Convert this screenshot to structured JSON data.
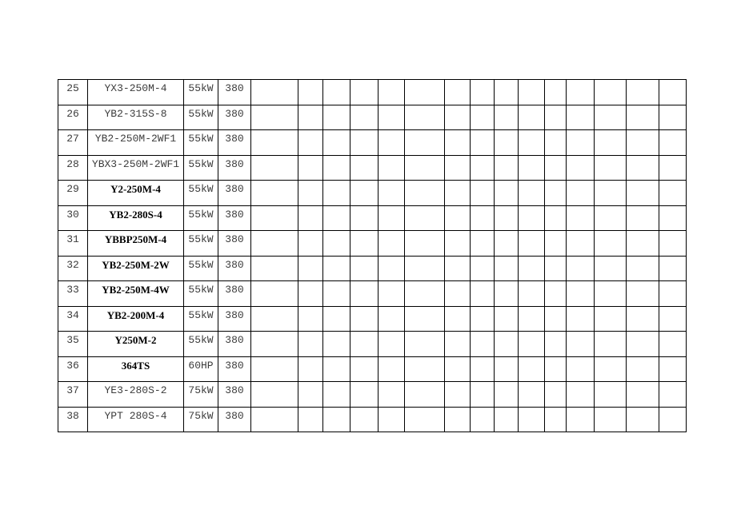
{
  "page": {
    "background_color": "#ffffff"
  },
  "colors": {
    "border": "#000000",
    "text_typewriter": "#3c3c3c",
    "text_serif_bold": "#000000"
  },
  "table": {
    "empty_column_count": 15,
    "rows": [
      {
        "num": "25",
        "model": "YX3-250M-4",
        "power": "55kW",
        "voltage": "380",
        "model_style": "typewriter"
      },
      {
        "num": "26",
        "model": "YB2-315S-8",
        "power": "55kW",
        "voltage": "380",
        "model_style": "typewriter"
      },
      {
        "num": "27",
        "model": "YB2-250M-2WF1",
        "power": "55kW",
        "voltage": "380",
        "model_style": "typewriter"
      },
      {
        "num": "28",
        "model": "YBX3-250M-2WF1",
        "power": "55kW",
        "voltage": "380",
        "model_style": "typewriter"
      },
      {
        "num": "29",
        "model": "Y2-250M-4",
        "power": "55kW",
        "voltage": "380",
        "model_style": "serif-bold"
      },
      {
        "num": "30",
        "model": "YB2-280S-4",
        "power": "55kW",
        "voltage": "380",
        "model_style": "serif-bold"
      },
      {
        "num": "31",
        "model": "YBBP250M-4",
        "power": "55kW",
        "voltage": "380",
        "model_style": "serif-bold"
      },
      {
        "num": "32",
        "model": "YB2-250M-2W",
        "power": "55kW",
        "voltage": "380",
        "model_style": "serif-bold"
      },
      {
        "num": "33",
        "model": "YB2-250M-4W",
        "power": "55kW",
        "voltage": "380",
        "model_style": "serif-bold"
      },
      {
        "num": "34",
        "model": "YB2-200M-4",
        "power": "55kW",
        "voltage": "380",
        "model_style": "serif-bold"
      },
      {
        "num": "35",
        "model": "Y250M-2",
        "power": "55kW",
        "voltage": "380",
        "model_style": "serif-bold"
      },
      {
        "num": "36",
        "model": "364TS",
        "power": "60HP",
        "voltage": "380",
        "model_style": "serif-bold"
      },
      {
        "num": "37",
        "model": "YE3-280S-2",
        "power": "75kW",
        "voltage": "380",
        "model_style": "typewriter"
      },
      {
        "num": "38",
        "model": "YPT 280S-4",
        "power": "75kW",
        "voltage": "380",
        "model_style": "typewriter"
      }
    ]
  }
}
